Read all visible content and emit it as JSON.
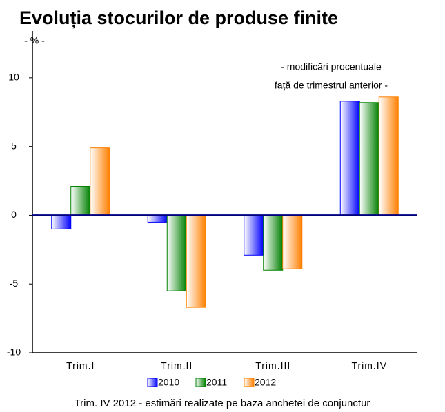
{
  "chart_data": {
    "type": "bar",
    "title": "Evoluția stocurilor de produse finite",
    "y_label": "- % -",
    "annotation": [
      "- modificări procentuale",
      "față de trimestrul anterior -"
    ],
    "note": "Trim. IV 2012 - estimări realizate pe baza anchetei de conjunctur",
    "categories": [
      "Trim.I",
      "Trim.II",
      "Trim.III",
      "Trim.IV"
    ],
    "series": [
      {
        "name": "2010",
        "color": "#0000ff",
        "values": [
          -1.0,
          -0.5,
          -2.9,
          8.3
        ]
      },
      {
        "name": "2011",
        "color": "#008000",
        "values": [
          2.1,
          -5.5,
          -4.0,
          8.2
        ]
      },
      {
        "name": "2012",
        "color": "#ff8000",
        "values": [
          4.9,
          -6.7,
          -3.9,
          8.6
        ]
      }
    ],
    "ylim": [
      -10,
      13.4
    ],
    "yticks": [
      -10,
      -5,
      0,
      5,
      10
    ]
  }
}
